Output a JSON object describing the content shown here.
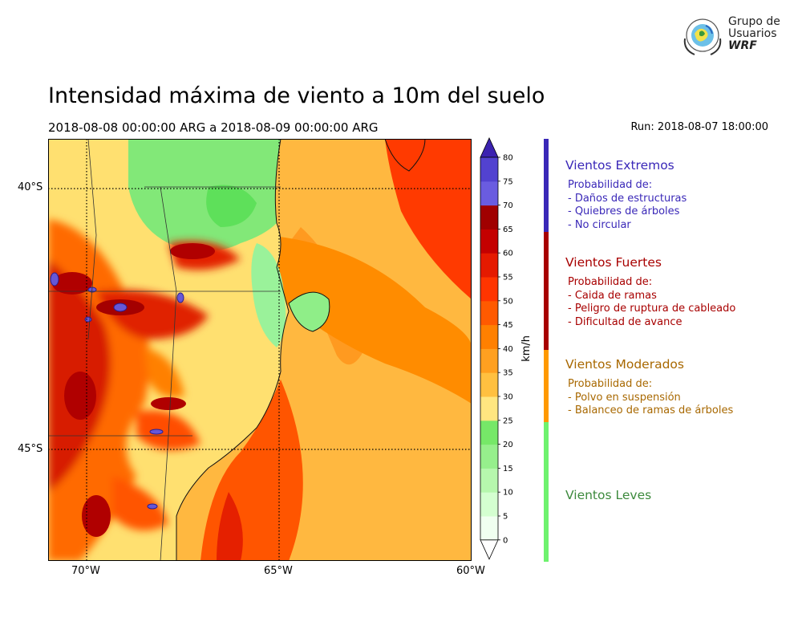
{
  "logo": {
    "line1": "Grupo de",
    "line2": "Usuarios",
    "line3": "WRF"
  },
  "title": "Intensidad máxima de viento a 10m del suelo",
  "subtitle": "2018-08-08 00:00:00 ARG  a  2018-08-09 00:00:00 ARG",
  "run": "Run: 2018-08-07 18:00:00",
  "map": {
    "lon_labels": [
      "70°W",
      "65°W",
      "60°W"
    ],
    "lat_labels": [
      "40°S",
      "45°S"
    ]
  },
  "colorbar": {
    "unit": "km/h",
    "ticks": [
      "0",
      "5",
      "10",
      "15",
      "20",
      "25",
      "30",
      "35",
      "40",
      "45",
      "50",
      "55",
      "60",
      "65",
      "70",
      "75",
      "80"
    ],
    "colors": [
      "#f0fff0",
      "#d4ffd0",
      "#b6f7ad",
      "#96ef8c",
      "#76e868",
      "#ffe680",
      "#ffc040",
      "#ffa020",
      "#ff8000",
      "#ff5a00",
      "#ff3500",
      "#e51a00",
      "#c40000",
      "#a00000",
      "#6a5ce0",
      "#5242d0",
      "#3f2bbd"
    ],
    "extend_low": "#ffffff",
    "extend_high": "#3b22b0"
  },
  "categories": [
    {
      "title": "Vientos Extremos",
      "color": "#3a28b8",
      "lines": [
        "Probabilidad de:",
        "- Daños de estructuras",
        "- Quiebres de árboles",
        "- No circular"
      ]
    },
    {
      "title": "Vientos Fuertes",
      "color": "#a80000",
      "lines": [
        "Probabilidad de:",
        "- Caida de ramas",
        "- Peligro de ruptura de cableado",
        "- Dificultad de avance"
      ]
    },
    {
      "title": "Vientos Moderados",
      "color": "#a86800",
      "bar_color": "#ff9900",
      "lines": [
        "Probabilidad de:",
        "- Polvo en suspensión",
        "- Balanceo de ramas de árboles"
      ]
    },
    {
      "title": "Vientos Leves",
      "color": "#3d8a3d",
      "bar_color": "#6ef26e",
      "lines": []
    }
  ]
}
